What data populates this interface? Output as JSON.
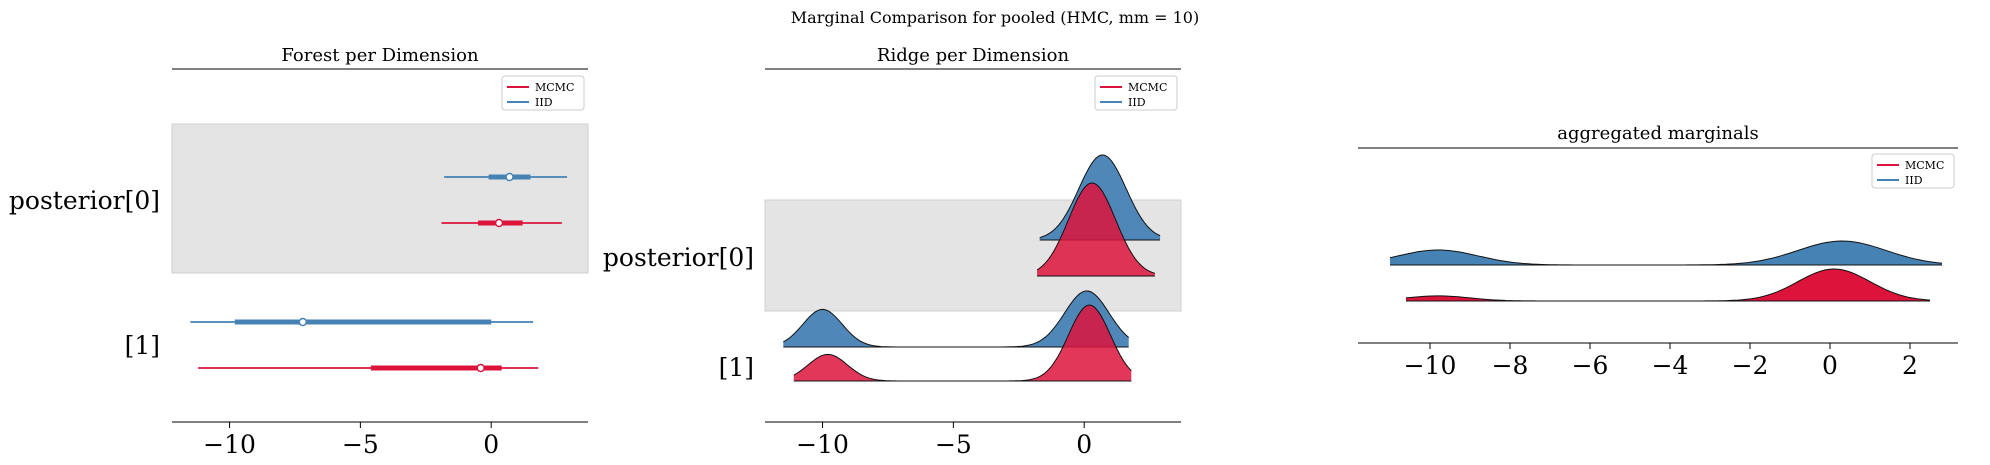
{
  "figure": {
    "suptitle": "Marginal Comparison for pooled (HMC, mm = 10)"
  },
  "colors": {
    "mcmc": "#dc143c",
    "iid": "#4682b4",
    "band": "#e4e4e4"
  },
  "chart_data": [
    {
      "type": "forest",
      "title": "Forest per Dimension",
      "xlim": [
        -12.2,
        3.7
      ],
      "xticks": [
        -10,
        -5,
        0
      ],
      "xtick_labels": [
        "−10",
        "−5",
        "0"
      ],
      "rows": [
        "posterior[0]",
        "[1]"
      ],
      "legend": {
        "position": "top-right",
        "entries": [
          "MCMC",
          "IID"
        ]
      },
      "intervals": [
        {
          "row": 0,
          "series": "IID",
          "hdi_outer": [
            -1.8,
            2.9
          ],
          "hdi_inner": [
            -0.1,
            1.5
          ],
          "point": 0.7
        },
        {
          "row": 0,
          "series": "MCMC",
          "hdi_outer": [
            -1.9,
            2.7
          ],
          "hdi_inner": [
            -0.5,
            1.2
          ],
          "point": 0.3
        },
        {
          "row": 1,
          "series": "IID",
          "hdi_outer": [
            -11.5,
            1.6
          ],
          "hdi_inner": [
            -9.8,
            0.0
          ],
          "point": -7.2
        },
        {
          "row": 1,
          "series": "MCMC",
          "hdi_outer": [
            -11.2,
            1.8
          ],
          "hdi_inner": [
            -4.6,
            0.4
          ],
          "point": -0.4
        }
      ]
    },
    {
      "type": "ridge",
      "title": "Ridge per Dimension",
      "xlim": [
        -12.2,
        3.7
      ],
      "xticks": [
        -10,
        -5,
        0
      ],
      "xtick_labels": [
        "−10",
        "−5",
        "0"
      ],
      "rows": [
        "posterior[0]",
        "[1]"
      ],
      "legend": {
        "position": "top-right",
        "entries": [
          "MCMC",
          "IID"
        ]
      },
      "densities": [
        {
          "row": 0,
          "series": "IID",
          "range": [
            -1.7,
            2.9
          ],
          "modes": [
            {
              "mu": 0.7,
              "sd": 0.9,
              "w": 1.0
            }
          ]
        },
        {
          "row": 0,
          "series": "MCMC",
          "range": [
            -1.8,
            2.7
          ],
          "modes": [
            {
              "mu": 0.3,
              "sd": 0.9,
              "w": 1.0
            }
          ]
        },
        {
          "row": 1,
          "series": "IID",
          "range": [
            -11.5,
            1.7
          ],
          "modes": [
            {
              "mu": -10.0,
              "sd": 0.75,
              "w": 0.55
            },
            {
              "mu": 0.1,
              "sd": 0.85,
              "w": 0.82
            }
          ]
        },
        {
          "row": 1,
          "series": "MCMC",
          "range": [
            -11.1,
            1.8
          ],
          "modes": [
            {
              "mu": -9.8,
              "sd": 0.75,
              "w": 0.35
            },
            {
              "mu": 0.2,
              "sd": 0.8,
              "w": 1.0
            }
          ]
        }
      ]
    },
    {
      "type": "ridge",
      "title": "aggregated marginals",
      "xlim": [
        -11.8,
        3.2
      ],
      "xticks": [
        -10,
        -8,
        -6,
        -4,
        -2,
        0,
        2
      ],
      "xtick_labels": [
        "−10",
        "−8",
        "−6",
        "−4",
        "−2",
        "0",
        "2"
      ],
      "legend": {
        "position": "top-right",
        "entries": [
          "MCMC",
          "IID"
        ]
      },
      "densities": [
        {
          "row": 0,
          "series": "IID",
          "range": [
            -11.0,
            2.8
          ],
          "modes": [
            {
              "mu": -9.8,
              "sd": 1.0,
              "w": 0.3
            },
            {
              "mu": 0.3,
              "sd": 1.1,
              "w": 0.48
            }
          ]
        },
        {
          "row": 1,
          "series": "MCMC",
          "range": [
            -10.6,
            2.5
          ],
          "modes": [
            {
              "mu": -9.8,
              "sd": 0.8,
              "w": 0.12
            },
            {
              "mu": 0.1,
              "sd": 0.9,
              "w": 0.75
            }
          ]
        }
      ]
    }
  ]
}
